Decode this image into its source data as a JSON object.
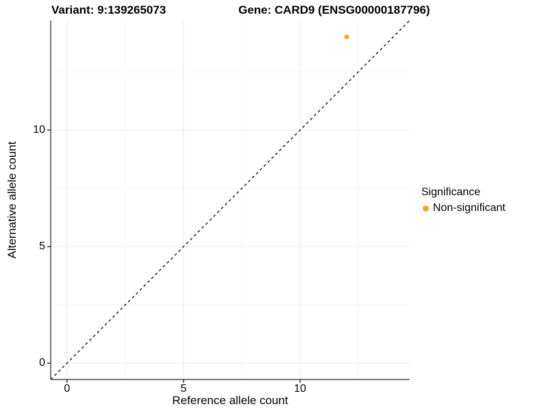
{
  "titles": {
    "left": "Variant: 9:139265073",
    "right": "Gene: CARD9 (ENSG00000187796)"
  },
  "chart_data": {
    "type": "scatter",
    "xlabel": "Reference allele count",
    "ylabel": "Alternative allele count",
    "xlim": [
      -0.7,
      14.7
    ],
    "ylim": [
      -0.7,
      14.7
    ],
    "x_ticks": [
      0,
      5,
      10
    ],
    "y_ticks": [
      0,
      5,
      10
    ],
    "x_minor_ticks": [
      2.5,
      7.5,
      12.5
    ],
    "y_minor_ticks": [
      2.5,
      7.5,
      12.5
    ],
    "grid": true,
    "identity_line": {
      "slope": 1,
      "intercept": 0,
      "style": "dashed",
      "color": "#000000"
    },
    "series": [
      {
        "name": "Non-significant",
        "color": "#F8A32B",
        "points": [
          {
            "x": 12,
            "y": 14
          }
        ]
      }
    ],
    "legend": {
      "title": "Significance",
      "position": "right",
      "items": [
        {
          "label": "Non-significant",
          "color": "#F8A32B"
        }
      ]
    },
    "colors": {
      "grid_major": "#e9e9e9",
      "grid_minor": "#f4f4f4",
      "axis_line": "#4d4d4d",
      "tick_mark": "#333333",
      "background": "#ffffff"
    }
  }
}
